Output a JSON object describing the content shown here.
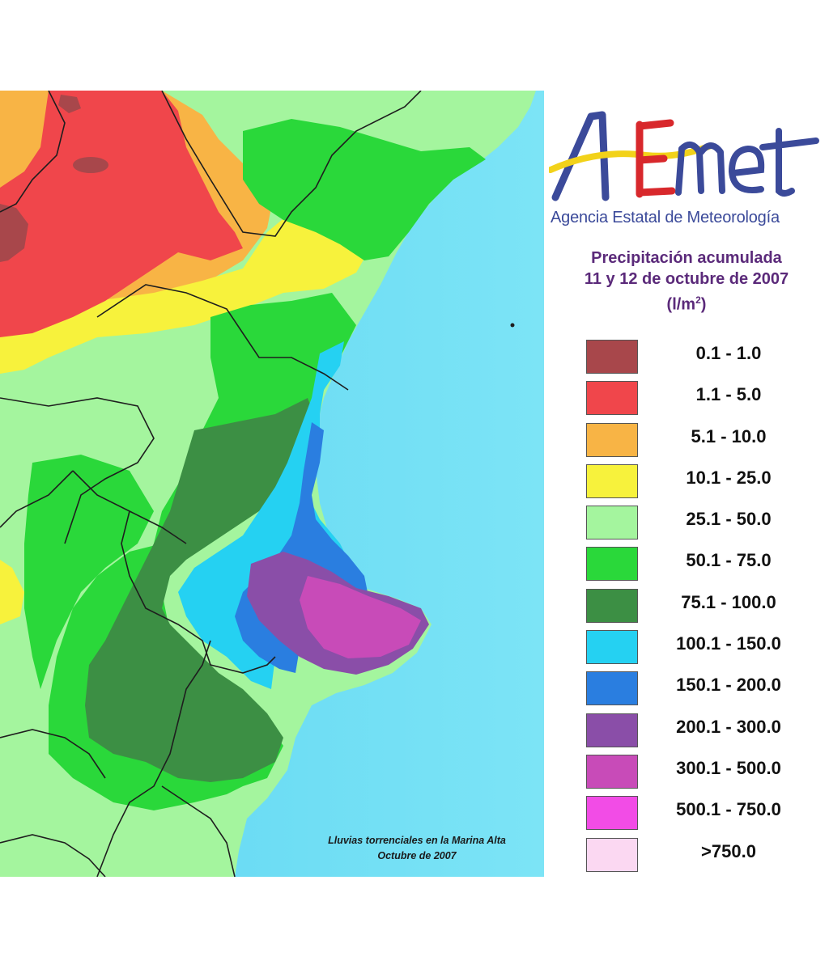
{
  "logo": {
    "brand": "AEmet"
  },
  "agency": "Agencia Estatal de Meteorología",
  "title": {
    "line1": "Precipitación acumulada",
    "line2": "11 y 12 de octubre de 2007",
    "unit": "(l/m",
    "unit_sup": "2",
    "unit_end": ")"
  },
  "legend": [
    {
      "label": "0.1 - 1.0",
      "color": "#a8474b"
    },
    {
      "label": "1.1 - 5.0",
      "color": "#f0464b"
    },
    {
      "label": "5.1 - 10.0",
      "color": "#f8b445"
    },
    {
      "label": "10.1 - 25.0",
      "color": "#f7f23c"
    },
    {
      "label": "25.1 - 50.0",
      "color": "#a4f59e"
    },
    {
      "label": "50.1 - 75.0",
      "color": "#2ad83a"
    },
    {
      "label": "75.1 - 100.0",
      "color": "#3c8f44"
    },
    {
      "label": "100.1 - 150.0",
      "color": "#25d1f2"
    },
    {
      "label": "150.1 - 200.0",
      "color": "#2a7ee0"
    },
    {
      "label": "200.1 - 300.0",
      "color": "#8a4ea8"
    },
    {
      "label": "300.1 - 500.0",
      "color": "#c84bb8"
    },
    {
      "label": "500.1 - 750.0",
      "color": "#f24ce6"
    },
    {
      "label": ">750.0",
      "color": "#fbd8f2"
    }
  ],
  "caption": {
    "line1": "Lluvias torrenciales en la Marina Alta",
    "line2": "Octubre de 2007"
  },
  "colors": {
    "sea": "#5fd6f2",
    "sea_deep": "#7ae6f6",
    "border": "#1e1e1e"
  }
}
